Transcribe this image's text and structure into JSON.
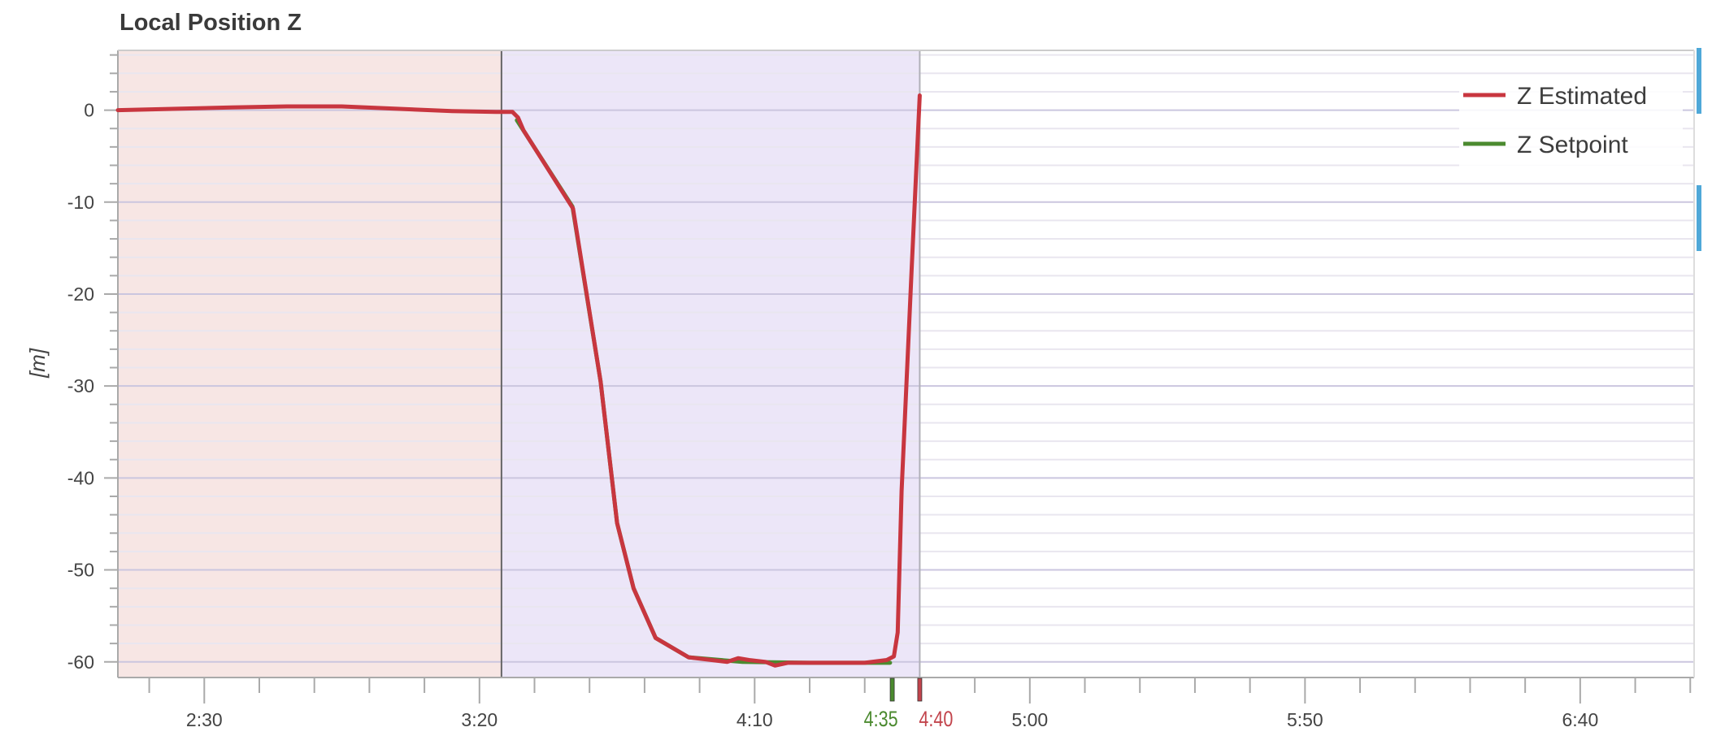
{
  "chart_data": {
    "type": "line",
    "title": "Local Position Z",
    "xlabel": "",
    "ylabel": "[m]",
    "xlim": [
      "2:14",
      "7:01"
    ],
    "ylim": [
      -61.7,
      6.5
    ],
    "x_ticks": [
      "2:30",
      "3:20",
      "4:10",
      "5:00",
      "5:50",
      "6:40"
    ],
    "x_tick_seconds": [
      150,
      200,
      250,
      300,
      350,
      400
    ],
    "y_ticks": [
      0,
      -10,
      -20,
      -30,
      -40,
      -50,
      -60
    ],
    "grid": true,
    "legend_placement": "top-right",
    "regions": [
      {
        "from_s": 134,
        "to_s": 204,
        "color": "#f7e6e4"
      },
      {
        "from_s": 204,
        "to_s": 280,
        "color": "#ece6f8"
      }
    ],
    "markers": [
      {
        "label": "4:35",
        "t_s": 275,
        "color": "#4b8a2f"
      },
      {
        "label": "4:40",
        "t_s": 280,
        "color": "#c2444c"
      }
    ],
    "series": [
      {
        "name": "Z Estimated",
        "color": "#c8363f",
        "points": [
          [
            134.3,
            0
          ],
          [
            145,
            0.15
          ],
          [
            155,
            0.3
          ],
          [
            165,
            0.4
          ],
          [
            175,
            0.4
          ],
          [
            185,
            0.15
          ],
          [
            195,
            -0.1
          ],
          [
            203,
            -0.2
          ],
          [
            206,
            -0.2
          ],
          [
            207,
            -0.8
          ],
          [
            208,
            -2.2
          ],
          [
            217,
            -10.7
          ],
          [
            222,
            -29.5
          ],
          [
            225,
            -44.9
          ],
          [
            228,
            -52
          ],
          [
            232,
            -57.4
          ],
          [
            238,
            -59.5
          ],
          [
            245,
            -60
          ],
          [
            247,
            -59.6
          ],
          [
            249,
            -59.8
          ],
          [
            252,
            -60
          ],
          [
            253.7,
            -60.4
          ],
          [
            256,
            -60.1
          ],
          [
            262,
            -60.1
          ],
          [
            270,
            -60.1
          ],
          [
            274,
            -59.8
          ],
          [
            275.3,
            -59.4
          ],
          [
            276,
            -56.8
          ],
          [
            276.7,
            -41.4
          ],
          [
            278.5,
            -17.6
          ],
          [
            280,
            1.6
          ]
        ]
      },
      {
        "name": "Z Setpoint",
        "color": "#4b8a2f",
        "points": [
          [
            206.8,
            -1.1
          ],
          [
            216.9,
            -10.5
          ],
          [
            222,
            -29.5
          ],
          [
            225,
            -44.9
          ],
          [
            228,
            -52
          ],
          [
            232,
            -57.4
          ],
          [
            238,
            -59.5
          ],
          [
            247.8,
            -60
          ],
          [
            260,
            -60.1
          ],
          [
            274.6,
            -60.1
          ]
        ]
      }
    ]
  },
  "scroll_indicator_color": "#4fa8d8"
}
